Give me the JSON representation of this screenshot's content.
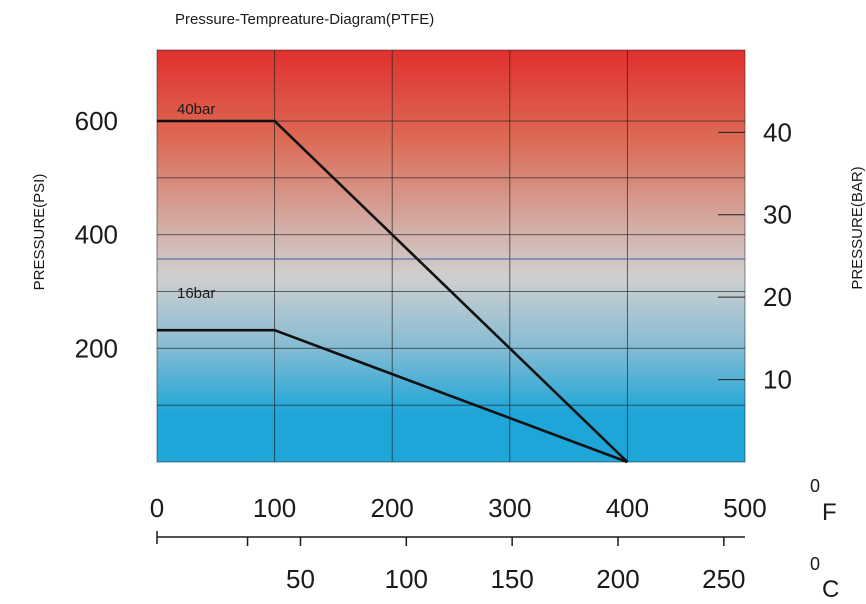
{
  "chart_data": {
    "type": "line",
    "title": "Pressure-Tempreature-Diagram(PTFE)",
    "ylabel_left": "PRESSURE(PSI)",
    "ylabel_right": "PRESSURE(BAR)",
    "x_unit_f": "F",
    "x_unit_c": "C",
    "degree_mark": "0",
    "xlim_f": [
      0,
      500
    ],
    "ylim_psi": [
      0,
      725
    ],
    "x_ticks_f": [
      "0",
      "100",
      "200",
      "300",
      "400",
      "500"
    ],
    "x_ticks_c": [
      "50",
      "100",
      "150",
      "200",
      "250"
    ],
    "y_ticks_psi": [
      "200",
      "400",
      "600"
    ],
    "y_ticks_bar": [
      "10",
      "20",
      "30",
      "40"
    ],
    "grid": true,
    "colors": {
      "hot": "#e0302e",
      "mid": "#cfcfcf",
      "cold": "#1ea6d8",
      "line": "#111111",
      "blue_rule": "#3a5fa8"
    },
    "series": [
      {
        "name": "40bar",
        "x": [
          0,
          100,
          400
        ],
        "y": [
          600,
          600,
          0
        ]
      },
      {
        "name": "16bar",
        "x": [
          0,
          100,
          400
        ],
        "y": [
          232,
          232,
          0
        ]
      }
    ]
  }
}
